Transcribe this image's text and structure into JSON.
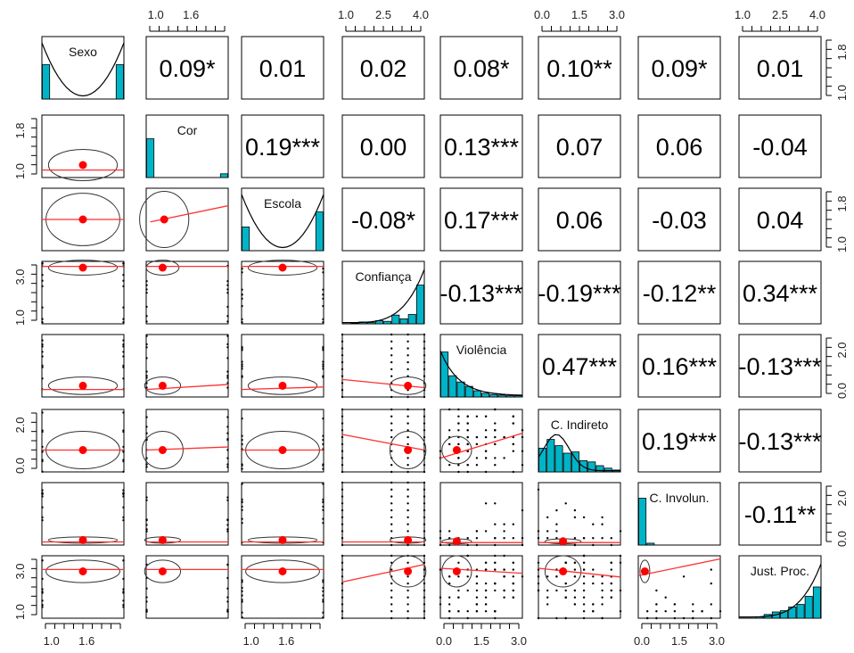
{
  "chart_data": {
    "type": "scatter-matrix",
    "title": "",
    "variables": [
      "Sexo",
      "Cor",
      "Escola",
      "Confiança",
      "Violência",
      "C. Indireto",
      "C. Involun.",
      "Just. Proc."
    ],
    "correlations": [
      {
        "row": 0,
        "col": 1,
        "label": "0.09*"
      },
      {
        "row": 0,
        "col": 2,
        "label": "0.01"
      },
      {
        "row": 0,
        "col": 3,
        "label": "0.02"
      },
      {
        "row": 0,
        "col": 4,
        "label": "0.08*"
      },
      {
        "row": 0,
        "col": 5,
        "label": "0.10**"
      },
      {
        "row": 0,
        "col": 6,
        "label": "0.09*"
      },
      {
        "row": 0,
        "col": 7,
        "label": "0.01"
      },
      {
        "row": 1,
        "col": 2,
        "label": "0.19***"
      },
      {
        "row": 1,
        "col": 3,
        "label": "0.00"
      },
      {
        "row": 1,
        "col": 4,
        "label": "0.13***"
      },
      {
        "row": 1,
        "col": 5,
        "label": "0.07"
      },
      {
        "row": 1,
        "col": 6,
        "label": "0.06"
      },
      {
        "row": 1,
        "col": 7,
        "label": "-0.04"
      },
      {
        "row": 2,
        "col": 3,
        "label": "-0.08*"
      },
      {
        "row": 2,
        "col": 4,
        "label": "0.17***"
      },
      {
        "row": 2,
        "col": 5,
        "label": "0.06"
      },
      {
        "row": 2,
        "col": 6,
        "label": "-0.03"
      },
      {
        "row": 2,
        "col": 7,
        "label": "0.04"
      },
      {
        "row": 3,
        "col": 4,
        "label": "-0.13***"
      },
      {
        "row": 3,
        "col": 5,
        "label": "-0.19***"
      },
      {
        "row": 3,
        "col": 6,
        "label": "-0.12**"
      },
      {
        "row": 3,
        "col": 7,
        "label": "0.34***"
      },
      {
        "row": 4,
        "col": 5,
        "label": "0.47***"
      },
      {
        "row": 4,
        "col": 6,
        "label": "0.16***"
      },
      {
        "row": 4,
        "col": 7,
        "label": "-0.13***"
      },
      {
        "row": 5,
        "col": 6,
        "label": "0.19***"
      },
      {
        "row": 5,
        "col": 7,
        "label": "-0.13***"
      },
      {
        "row": 6,
        "col": 7,
        "label": "-0.11**"
      }
    ],
    "histograms": [
      {
        "bars": [
          0.55,
          0.0,
          0.0,
          0.0,
          0.0,
          0.0,
          0.0,
          0.0,
          0.0,
          0.55
        ],
        "density": "bimodal"
      },
      {
        "bars": [
          0.62,
          0.0,
          0.0,
          0.0,
          0.0,
          0.0,
          0.0,
          0.0,
          0.0,
          0.06
        ],
        "density": "none"
      },
      {
        "bars": [
          0.38,
          0.0,
          0.0,
          0.0,
          0.0,
          0.0,
          0.0,
          0.0,
          0.0,
          0.62
        ],
        "density": "bimodal"
      },
      {
        "bars": [
          0.0,
          0.01,
          0.03,
          0.02,
          0.05,
          0.04,
          0.14,
          0.08,
          0.15,
          0.62
        ],
        "density": "right"
      },
      {
        "bars": [
          0.72,
          0.34,
          0.24,
          0.17,
          0.1,
          0.06,
          0.04,
          0.03,
          0.02,
          0.02
        ],
        "density": "left"
      },
      {
        "bars": [
          0.38,
          0.52,
          0.42,
          0.3,
          0.32,
          0.18,
          0.16,
          0.1,
          0.06,
          0.03
        ],
        "density": "peak"
      },
      {
        "bars": [
          0.75,
          0.03,
          0.0,
          0.0,
          0.0,
          0.0,
          0.0,
          0.0,
          0.0,
          0.0
        ],
        "density": "none"
      },
      {
        "bars": [
          0.0,
          0.0,
          0.02,
          0.06,
          0.1,
          0.12,
          0.18,
          0.22,
          0.35,
          0.5
        ],
        "density": "right"
      }
    ],
    "panels_lower": [
      {
        "row": 1,
        "col": 0,
        "mean": [
          0.5,
          0.2
        ],
        "fit": [
          [
            0,
            0.12
          ],
          [
            1,
            0.12
          ]
        ],
        "ellipse": [
          0.42,
          0.25
        ],
        "points": "none"
      },
      {
        "row": 2,
        "col": 0,
        "mean": [
          0.5,
          0.5
        ],
        "fit": [
          [
            0,
            0.5
          ],
          [
            1,
            0.5
          ]
        ],
        "ellipse": [
          0.45,
          0.42
        ],
        "points": "none"
      },
      {
        "row": 2,
        "col": 1,
        "mean": [
          0.22,
          0.5
        ],
        "fit": [
          [
            0.05,
            0.46
          ],
          [
            1,
            0.72
          ]
        ],
        "ellipse": [
          0.3,
          0.45
        ],
        "points": "none"
      },
      {
        "row": 3,
        "col": 0,
        "mean": [
          0.5,
          0.9
        ],
        "fit": [
          [
            0,
            0.92
          ],
          [
            1,
            0.92
          ]
        ],
        "ellipse": [
          0.42,
          0.12
        ],
        "points": "edges"
      },
      {
        "row": 3,
        "col": 1,
        "mean": [
          0.2,
          0.9
        ],
        "fit": [
          [
            0,
            0.92
          ],
          [
            1,
            0.92
          ]
        ],
        "ellipse": [
          0.2,
          0.12
        ],
        "points": "edges"
      },
      {
        "row": 3,
        "col": 2,
        "mean": [
          0.5,
          0.9
        ],
        "fit": [
          [
            0,
            0.92
          ],
          [
            1,
            0.92
          ]
        ],
        "ellipse": [
          0.42,
          0.12
        ],
        "points": "edges"
      },
      {
        "row": 4,
        "col": 0,
        "mean": [
          0.5,
          0.18
        ],
        "fit": [
          [
            0,
            0.12
          ],
          [
            1,
            0.12
          ]
        ],
        "ellipse": [
          0.42,
          0.14
        ],
        "points": "edges"
      },
      {
        "row": 4,
        "col": 1,
        "mean": [
          0.2,
          0.18
        ],
        "fit": [
          [
            0,
            0.12
          ],
          [
            1,
            0.2
          ]
        ],
        "ellipse": [
          0.22,
          0.14
        ],
        "points": "edges"
      },
      {
        "row": 4,
        "col": 2,
        "mean": [
          0.5,
          0.18
        ],
        "fit": [
          [
            0,
            0.12
          ],
          [
            1,
            0.16
          ]
        ],
        "ellipse": [
          0.42,
          0.14
        ],
        "points": "edges"
      },
      {
        "row": 4,
        "col": 3,
        "mean": [
          0.8,
          0.18
        ],
        "fit": [
          [
            0,
            0.28
          ],
          [
            1,
            0.15
          ]
        ],
        "ellipse": [
          0.22,
          0.14
        ],
        "points": "grid"
      },
      {
        "row": 5,
        "col": 0,
        "mean": [
          0.5,
          0.35
        ],
        "fit": [
          [
            0,
            0.35
          ],
          [
            1,
            0.35
          ]
        ],
        "ellipse": [
          0.45,
          0.3
        ],
        "points": "edges"
      },
      {
        "row": 5,
        "col": 1,
        "mean": [
          0.2,
          0.35
        ],
        "fit": [
          [
            0,
            0.35
          ],
          [
            1,
            0.4
          ]
        ],
        "ellipse": [
          0.25,
          0.3
        ],
        "points": "edges"
      },
      {
        "row": 5,
        "col": 2,
        "mean": [
          0.5,
          0.35
        ],
        "fit": [
          [
            0,
            0.35
          ],
          [
            1,
            0.35
          ]
        ],
        "ellipse": [
          0.45,
          0.3
        ],
        "points": "edges"
      },
      {
        "row": 5,
        "col": 3,
        "mean": [
          0.8,
          0.35
        ],
        "fit": [
          [
            0,
            0.6
          ],
          [
            1,
            0.35
          ]
        ],
        "ellipse": [
          0.22,
          0.3
        ],
        "points": "grid"
      },
      {
        "row": 5,
        "col": 4,
        "mean": [
          0.2,
          0.35
        ],
        "fit": [
          [
            0,
            0.22
          ],
          [
            1,
            0.62
          ]
        ],
        "ellipse": [
          0.18,
          0.22
        ],
        "points": "dense"
      },
      {
        "row": 6,
        "col": 0,
        "mean": [
          0.5,
          0.08
        ],
        "fit": [
          [
            0,
            0.05
          ],
          [
            1,
            0.05
          ]
        ],
        "ellipse": [
          0.42,
          0.05
        ],
        "points": "edges"
      },
      {
        "row": 6,
        "col": 1,
        "mean": [
          0.2,
          0.08
        ],
        "fit": [
          [
            0,
            0.05
          ],
          [
            1,
            0.05
          ]
        ],
        "ellipse": [
          0.22,
          0.05
        ],
        "points": "edges"
      },
      {
        "row": 6,
        "col": 2,
        "mean": [
          0.5,
          0.08
        ],
        "fit": [
          [
            0,
            0.05
          ],
          [
            1,
            0.05
          ]
        ],
        "ellipse": [
          0.42,
          0.05
        ],
        "points": "edges"
      },
      {
        "row": 6,
        "col": 3,
        "mean": [
          0.8,
          0.08
        ],
        "fit": [
          [
            0,
            0.05
          ],
          [
            1,
            0.05
          ]
        ],
        "ellipse": [
          0.22,
          0.05
        ],
        "points": "grid"
      },
      {
        "row": 6,
        "col": 4,
        "mean": [
          0.2,
          0.06
        ],
        "fit": [
          [
            0,
            0.04
          ],
          [
            1,
            0.04
          ]
        ],
        "ellipse": [
          0.18,
          0.04
        ],
        "points": "sparse"
      },
      {
        "row": 6,
        "col": 5,
        "mean": [
          0.3,
          0.06
        ],
        "fit": [
          [
            0,
            0.04
          ],
          [
            1,
            0.04
          ]
        ],
        "ellipse": [
          0.22,
          0.04
        ],
        "points": "sparse"
      },
      {
        "row": 7,
        "col": 0,
        "mean": [
          0.5,
          0.75
        ],
        "fit": [
          [
            0,
            0.78
          ],
          [
            1,
            0.78
          ]
        ],
        "ellipse": [
          0.45,
          0.18
        ],
        "points": "edges"
      },
      {
        "row": 7,
        "col": 1,
        "mean": [
          0.2,
          0.75
        ],
        "fit": [
          [
            0,
            0.78
          ],
          [
            1,
            0.78
          ]
        ],
        "ellipse": [
          0.22,
          0.18
        ],
        "points": "edges"
      },
      {
        "row": 7,
        "col": 2,
        "mean": [
          0.5,
          0.75
        ],
        "fit": [
          [
            0,
            0.78
          ],
          [
            1,
            0.78
          ]
        ],
        "ellipse": [
          0.45,
          0.18
        ],
        "points": "edges"
      },
      {
        "row": 7,
        "col": 3,
        "mean": [
          0.8,
          0.75
        ],
        "fit": [
          [
            0,
            0.58
          ],
          [
            1,
            0.86
          ]
        ],
        "ellipse": [
          0.22,
          0.25
        ],
        "points": "grid"
      },
      {
        "row": 7,
        "col": 4,
        "mean": [
          0.2,
          0.75
        ],
        "fit": [
          [
            0,
            0.8
          ],
          [
            1,
            0.72
          ]
        ],
        "ellipse": [
          0.18,
          0.25
        ],
        "points": "dense"
      },
      {
        "row": 7,
        "col": 5,
        "mean": [
          0.3,
          0.75
        ],
        "fit": [
          [
            0,
            0.8
          ],
          [
            1,
            0.66
          ]
        ],
        "ellipse": [
          0.22,
          0.25
        ],
        "points": "dense"
      },
      {
        "row": 7,
        "col": 6,
        "mean": [
          0.08,
          0.75
        ],
        "fit": [
          [
            0,
            0.68
          ],
          [
            1,
            0.95
          ]
        ],
        "ellipse": [
          0.06,
          0.18
        ],
        "points": "sparse"
      }
    ],
    "axes": {
      "top": [
        {
          "col": 1,
          "ticks": [
            "1.0",
            "1.6"
          ]
        },
        {
          "col": 3,
          "ticks": [
            "1.0",
            "2.5",
            "4.0"
          ]
        },
        {
          "col": 5,
          "ticks": [
            "0.0",
            "1.5",
            "3.0"
          ]
        },
        {
          "col": 7,
          "ticks": [
            "1.0",
            "2.5",
            "4.0"
          ]
        }
      ],
      "bottom": [
        {
          "col": 0,
          "ticks": [
            "1.0",
            "1.6"
          ]
        },
        {
          "col": 2,
          "ticks": [
            "1.0",
            "1.6"
          ]
        },
        {
          "col": 4,
          "ticks": [
            "0.0",
            "1.5",
            "3.0"
          ]
        },
        {
          "col": 6,
          "ticks": [
            "0.0",
            "1.5",
            "3.0"
          ]
        }
      ],
      "left": [
        {
          "row": 1,
          "ticks": [
            "1.0",
            "1.8"
          ]
        },
        {
          "row": 3,
          "ticks": [
            "1.0",
            "3.0"
          ]
        },
        {
          "row": 5,
          "ticks": [
            "0.0",
            "2.0"
          ]
        },
        {
          "row": 7,
          "ticks": [
            "1.0",
            "3.0"
          ]
        }
      ],
      "right": [
        {
          "row": 0,
          "ticks": [
            "1.0",
            "1.8"
          ]
        },
        {
          "row": 2,
          "ticks": [
            "1.0",
            "1.8"
          ]
        },
        {
          "row": 4,
          "ticks": [
            "0.0",
            "2.0"
          ]
        },
        {
          "row": 6,
          "ticks": [
            "0.0",
            "2.0"
          ]
        }
      ]
    },
    "colors": {
      "bar": "#00b4c8",
      "fit": "#ff3030",
      "mean": "#ff0000",
      "ellipse": "#333333",
      "point": "#000000"
    }
  }
}
